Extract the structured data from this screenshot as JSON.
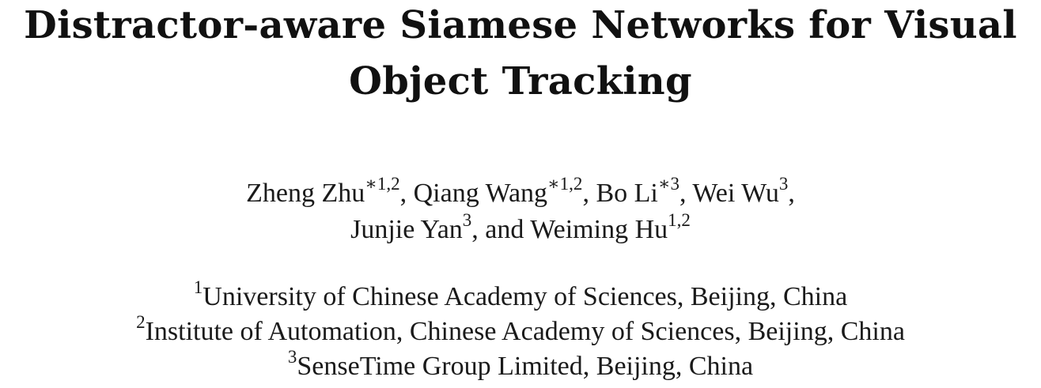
{
  "title": {
    "line1": "Distractor-aware Siamese Networks for Visual",
    "line2": "Object Tracking"
  },
  "authors": [
    {
      "name": "Zheng Zhu",
      "marks": "∗1,2",
      "sep": ", "
    },
    {
      "name": "Qiang Wang",
      "marks": "∗1,2",
      "sep": ", "
    },
    {
      "name": "Bo Li",
      "marks": "∗3",
      "sep": ", "
    },
    {
      "name": "Wei Wu",
      "marks": "3",
      "sep": ","
    },
    {
      "name": "Junjie Yan",
      "marks": "3",
      "sep": ", and "
    },
    {
      "name": "Weiming Hu",
      "marks": "1,2",
      "sep": ""
    }
  ],
  "affiliations": [
    {
      "mark": "1",
      "text": "University of Chinese Academy of Sciences, Beijing, China"
    },
    {
      "mark": "2",
      "text": "Institute of Automation, Chinese Academy of Sciences, Beijing, China"
    },
    {
      "mark": "3",
      "text": "SenseTime Group Limited, Beijing, China"
    }
  ]
}
